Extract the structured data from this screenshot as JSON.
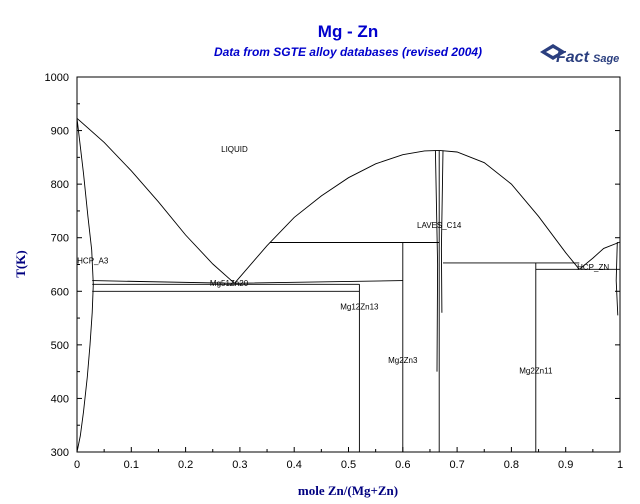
{
  "chart_data": {
    "type": "line",
    "title": "Mg - Zn",
    "subtitle": "Data from SGTE alloy databases (revised 2004)",
    "xlabel": "mole Zn/(Mg+Zn)",
    "ylabel": "T(K)",
    "xlim": [
      0,
      1
    ],
    "ylim": [
      300,
      1000
    ],
    "x_ticks": [
      "0",
      "0.1",
      "0.2",
      "0.3",
      "0.4",
      "0.5",
      "0.6",
      "0.7",
      "0.8",
      "0.9",
      "1"
    ],
    "y_ticks": [
      "300",
      "400",
      "500",
      "600",
      "700",
      "800",
      "900",
      "1000"
    ],
    "grid": false,
    "legend": "none",
    "phase_labels": [
      {
        "text": "LIQUID",
        "x": 0.29,
        "y": 860
      },
      {
        "text": "HCP_A3",
        "x": 0.015,
        "y": 652
      },
      {
        "text": "Mg51Zn20",
        "x": 0.28,
        "y": 610
      },
      {
        "text": "Mg12Zn13",
        "x": 0.52,
        "y": 566
      },
      {
        "text": "LAVES_C14",
        "x": 0.667,
        "y": 718
      },
      {
        "text": "Mg2Zn3",
        "x": 0.6,
        "y": 466
      },
      {
        "text": "Mg2Zn11",
        "x": 0.845,
        "y": 447
      },
      {
        "text": "HCP_ZN",
        "x": 0.98,
        "y": 640
      }
    ],
    "series": [
      {
        "values": [
          [
            0,
            923
          ],
          [
            0.05,
            878
          ],
          [
            0.1,
            825
          ],
          [
            0.15,
            767
          ],
          [
            0.2,
            705
          ],
          [
            0.25,
            651
          ],
          [
            0.29,
            615
          ]
        ]
      },
      {
        "values": [
          [
            0.29,
            615
          ],
          [
            0.35,
            685
          ],
          [
            0.4,
            738
          ],
          [
            0.45,
            778
          ],
          [
            0.5,
            812
          ],
          [
            0.55,
            838
          ],
          [
            0.6,
            855
          ],
          [
            0.64,
            862
          ],
          [
            0.667,
            863
          ]
        ]
      },
      {
        "values": [
          [
            0.667,
            863
          ],
          [
            0.7,
            860
          ],
          [
            0.75,
            840
          ],
          [
            0.8,
            800
          ],
          [
            0.85,
            740
          ],
          [
            0.9,
            672
          ],
          [
            0.925,
            641
          ]
        ]
      },
      {
        "values": [
          [
            0.925,
            641
          ],
          [
            0.95,
            662
          ],
          [
            0.97,
            680
          ],
          [
            1.0,
            692
          ]
        ]
      },
      {
        "values": [
          [
            0,
            923
          ],
          [
            0.012,
            820
          ],
          [
            0.02,
            740
          ],
          [
            0.027,
            677
          ],
          [
            0.03,
            613
          ]
        ]
      },
      {
        "values": [
          [
            0.03,
            613
          ],
          [
            0.028,
            560
          ],
          [
            0.024,
            500
          ],
          [
            0.019,
            440
          ],
          [
            0.012,
            375
          ],
          [
            0.006,
            330
          ],
          [
            0,
            300
          ]
        ]
      },
      {
        "values": [
          [
            0.028,
            613
          ],
          [
            0.52,
            613
          ]
        ]
      },
      {
        "values": [
          [
            0.028,
            620
          ],
          [
            0.29,
            615
          ],
          [
            0.6,
            620
          ]
        ]
      },
      {
        "values": [
          [
            0.028,
            600
          ],
          [
            0.52,
            600
          ]
        ]
      },
      {
        "values": [
          [
            0.355,
            691
          ],
          [
            0.667,
            691
          ]
        ]
      },
      {
        "values": [
          [
            0.6,
            691
          ],
          [
            0.6,
            300
          ]
        ]
      },
      {
        "values": [
          [
            0.52,
            613
          ],
          [
            0.52,
            300
          ]
        ]
      },
      {
        "values": [
          [
            0.667,
            863
          ],
          [
            0.667,
            300
          ]
        ]
      },
      {
        "values": [
          [
            0.66,
            863
          ],
          [
            0.664,
            650
          ],
          [
            0.663,
            450
          ]
        ]
      },
      {
        "values": [
          [
            0.674,
            863
          ],
          [
            0.671,
            680
          ],
          [
            0.672,
            560
          ]
        ]
      },
      {
        "values": [
          [
            0.674,
            653
          ],
          [
            0.925,
            653
          ]
        ]
      },
      {
        "values": [
          [
            0.845,
            653
          ],
          [
            0.845,
            300
          ]
        ]
      },
      {
        "values": [
          [
            0.845,
            641
          ],
          [
            1.0,
            641
          ]
        ]
      },
      {
        "values": [
          [
            0.995,
            692
          ],
          [
            0.993,
            620
          ],
          [
            0.996,
            555
          ]
        ]
      }
    ]
  },
  "logo": {
    "main": "Fact",
    "sub": "Sage"
  }
}
